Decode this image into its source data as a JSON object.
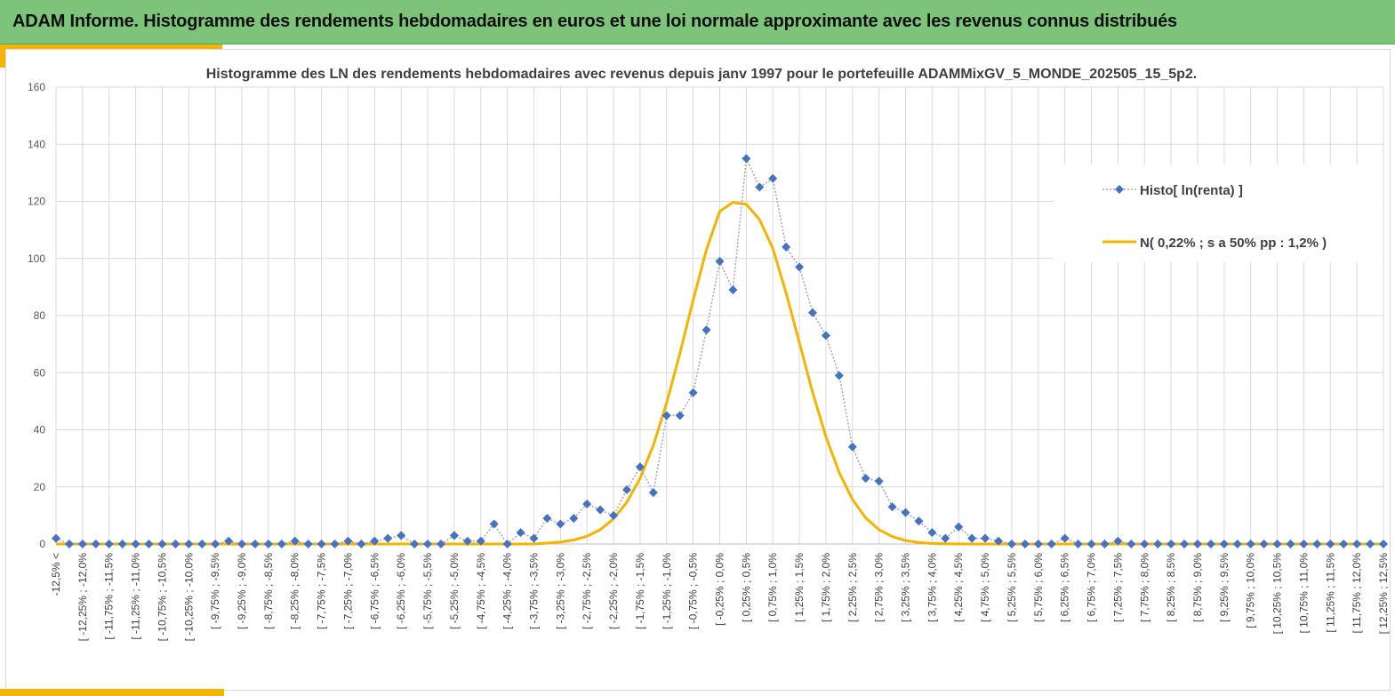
{
  "banner": {
    "title": "ADAM Informe. Histogramme des rendements hebdomadaires en euros et une loi normale approximante avec les revenus connus distribués"
  },
  "colors": {
    "banner": "#7dc47a",
    "accent": "#f4b400",
    "histo": "#4472c4",
    "normal": "#f4b400",
    "histo_line": "#a6a6a6"
  },
  "chart_data": {
    "type": "line",
    "title": "Histogramme des LN des rendements hebdomadaires avec revenus depuis janv 1997 pour le portefeuille ADAMMixGV_5_MONDE_202505_15_5p2.",
    "ylim": [
      0,
      160
    ],
    "yticks": [
      0,
      20,
      40,
      60,
      80,
      100,
      120,
      140,
      160
    ],
    "grid": true,
    "legend_position": "right",
    "x_tick_labels": [
      "-12,5% <",
      "[ -12,25% ; -12,0%",
      "[ -11,75% ; -11,5%",
      "[ -11,25% ; -11,0%",
      "[ -10,75% ; -10,5%",
      "[ -10,25% ; -10,0%",
      "[ -9,75% ; -9,5%",
      "[ -9,25% ; -9,0%",
      "[ -8,75% ; -8,5%",
      "[ -8,25% ; -8,0%",
      "[ -7,75% ; -7,5%",
      "[ -7,25% ; -7,0%",
      "[ -6,75% ; -6,5%",
      "[ -6,25% ; -6,0%",
      "[ -5,75% ; -5,5%",
      "[ -5,25% ; -5,0%",
      "[ -4,75% ; -4,5%",
      "[ -4,25% ; -4,0%",
      "[ -3,75% ; -3,5%",
      "[ -3,25% ; -3,0%",
      "[ -2,75% ; -2,5%",
      "[ -2,25% ; -2,0%",
      "[ -1,75% ; -1,5%",
      "[ -1,25% ; -1,0%",
      "[ -0,75% ; -0,5%",
      "[ -0,25% ; 0,0%",
      "[ 0,25% ; 0,5%",
      "[ 0,75% ; 1,0%",
      "[ 1,25% ; 1,5%",
      "[ 1,75% ; 2,0%",
      "[ 2,25% ; 2,5%",
      "[ 2,75% ; 3,0%",
      "[ 3,25% ; 3,5%",
      "[ 3,75% ; 4,0%",
      "[ 4,25% ; 4,5%",
      "[ 4,75% ; 5,0%",
      "[ 5,25% ; 5,5%",
      "[ 5,75% ; 6,0%",
      "[ 6,25% ; 6,5%",
      "[ 6,75% ; 7,0%",
      "[ 7,25% ; 7,5%",
      "[ 7,75% ; 8,0%",
      "[ 8,25% ; 8,5%",
      "[ 8,75% ; 9,0%",
      "[ 9,25% ; 9,5%",
      "[ 9,75% ; 10,0%",
      "[ 10,25% ; 10,5%",
      "[ 10,75% ; 11,0%",
      "[ 11,25% ; 11,5%",
      "[ 11,75% ; 12,0%",
      "[ 12,25% ; 12,5%"
    ],
    "series": [
      {
        "name": "Histo[ ln(renta) ]",
        "kind": "markers-dotted",
        "values": [
          2,
          0,
          0,
          0,
          0,
          0,
          0,
          0,
          0,
          0,
          0,
          0,
          0,
          1,
          0,
          0,
          0,
          0,
          1,
          0,
          0,
          0,
          1,
          0,
          1,
          2,
          3,
          0,
          0,
          0,
          3,
          1,
          1,
          7,
          0,
          4,
          2,
          9,
          7,
          9,
          14,
          12,
          10,
          19,
          27,
          18,
          45,
          45,
          53,
          75,
          99,
          89,
          135,
          125,
          128,
          104,
          97,
          81,
          73,
          59,
          34,
          23,
          22,
          13,
          11,
          8,
          4,
          2,
          6,
          2,
          2,
          1,
          0,
          0,
          0,
          0,
          2,
          0,
          0,
          0,
          1,
          0,
          0,
          0,
          0,
          0,
          0,
          0,
          0,
          0,
          0,
          0,
          0,
          0,
          0,
          0,
          0,
          0,
          0,
          0,
          0
        ]
      },
      {
        "name": "N( 0,22% ; s a 50% pp : 1,2% )",
        "kind": "line",
        "values": [
          0,
          0,
          0,
          0,
          0,
          0,
          0,
          0,
          0,
          0,
          0,
          0,
          0,
          0,
          0,
          0,
          0,
          0,
          0,
          0,
          0,
          0,
          0,
          0,
          0,
          0,
          0,
          0,
          0,
          0,
          0,
          0,
          0,
          0,
          0,
          0,
          0,
          0.3,
          0.7,
          1.4,
          2.7,
          5,
          8.8,
          14.6,
          23,
          34.6,
          49.4,
          66.7,
          85.4,
          103.1,
          116.5,
          119.6,
          119,
          113.6,
          103.5,
          88,
          70.5,
          53.1,
          37.6,
          25,
          15.6,
          9.1,
          5,
          2.6,
          1.2,
          0.5,
          0.2,
          0.1,
          0,
          0,
          0,
          0,
          0,
          0,
          0,
          0,
          0,
          0,
          0,
          0,
          0,
          0,
          0,
          0,
          0,
          0,
          0,
          0,
          0,
          0,
          0,
          0,
          0,
          0,
          0,
          0,
          0,
          0,
          0,
          0,
          0
        ]
      }
    ]
  }
}
